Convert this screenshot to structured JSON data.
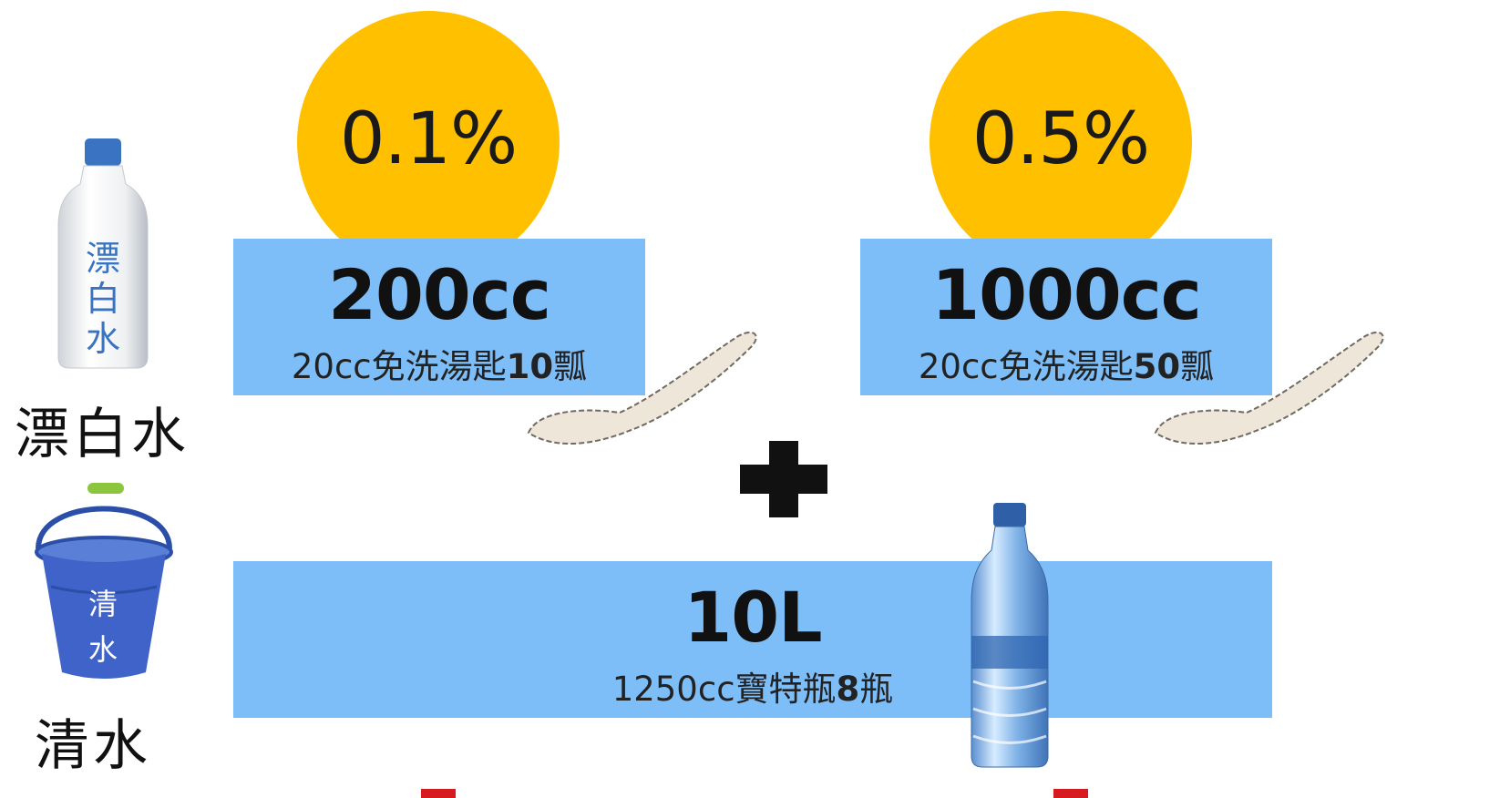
{
  "bleach": {
    "label": "漂白水",
    "bottle_text": [
      "漂",
      "白",
      "水"
    ]
  },
  "water": {
    "label": "清水",
    "bucket_text": [
      "清",
      "水"
    ]
  },
  "concentration_1": {
    "percent": "0.1%",
    "amount": "200cc",
    "spoon_prefix": "20cc免洗湯匙",
    "spoon_count": "10",
    "spoon_unit": "瓢"
  },
  "concentration_2": {
    "percent": "0.5%",
    "amount": "1000cc",
    "spoon_prefix": "20cc免洗湯匙",
    "spoon_count": "50",
    "spoon_unit": "瓢"
  },
  "water_amount": {
    "amount": "10L",
    "bottle_prefix": "1250cc寶特瓶",
    "bottle_count": "8",
    "bottle_unit": "瓶"
  },
  "colors": {
    "circle": "#FFC000",
    "box": "#7DBEF9",
    "bucket": "#3F63C9",
    "accent_red": "#D71920"
  },
  "icons": [
    "bleach-bottle-icon",
    "bucket-icon",
    "spoon-icon",
    "water-bottle-icon",
    "plus-icon"
  ]
}
